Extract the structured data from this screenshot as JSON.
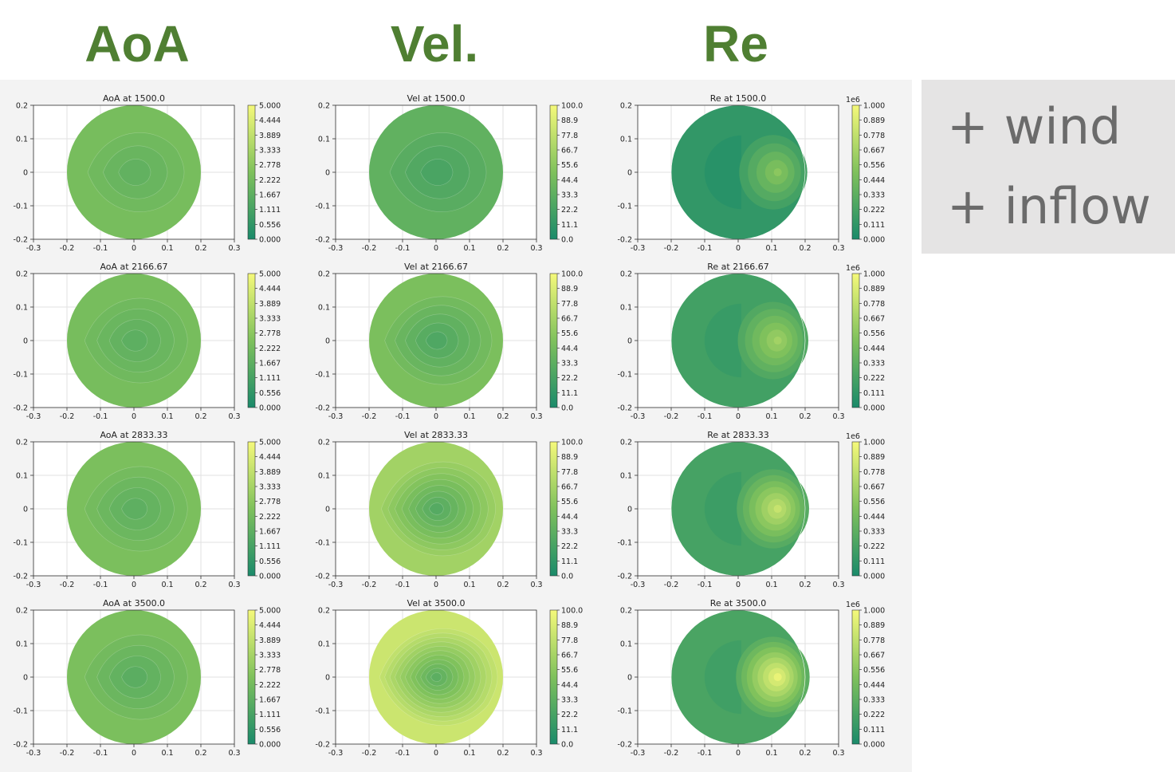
{
  "headers": {
    "aoa": "AoA",
    "vel": "Vel.",
    "re": "Re"
  },
  "annotations": [
    "+ wind",
    "+ inflow"
  ],
  "colors": {
    "header_green": "#4f7f32",
    "panel_bg": "#f3f3f3",
    "side_bg": "#e5e4e4",
    "colormap": [
      "#1a8a6a",
      "#7fc15c",
      "#f5f97a"
    ]
  },
  "chart_data": [
    {
      "type": "heatmap",
      "quantity": "AoA",
      "xlim": [
        -0.3,
        0.3
      ],
      "ylim": [
        -0.2,
        0.2
      ],
      "x_ticks": [
        "-0.3",
        "-0.2",
        "-0.1",
        "0",
        "0.1",
        "0.2",
        "0.3"
      ],
      "y_ticks": [
        "-0.2",
        "-0.1",
        "0",
        "0.1",
        "0.2"
      ],
      "grid": true,
      "colorbar": {
        "range": [
          0,
          5
        ],
        "scale_label": "",
        "ticks": [
          "5.000",
          "4.444",
          "3.889",
          "3.333",
          "2.778",
          "2.222",
          "1.667",
          "1.111",
          "0.556",
          "0.000"
        ]
      },
      "panels": [
        {
          "title": "AoA at 1500.0",
          "level_center": 1.6,
          "level_edge": 2.3,
          "contours": 4
        },
        {
          "title": "AoA at 2166.67",
          "level_center": 1.5,
          "level_edge": 2.3,
          "contours": 5
        },
        {
          "title": "AoA at 2833.33",
          "level_center": 1.5,
          "level_edge": 2.4,
          "contours": 5
        },
        {
          "title": "AoA at 3500.0",
          "level_center": 1.4,
          "level_edge": 2.4,
          "contours": 5
        }
      ]
    },
    {
      "type": "heatmap",
      "quantity": "Vel",
      "xlim": [
        -0.3,
        0.3
      ],
      "ylim": [
        -0.2,
        0.2
      ],
      "x_ticks": [
        "-0.3",
        "-0.2",
        "-0.1",
        "0",
        "0.1",
        "0.2",
        "0.3"
      ],
      "y_ticks": [
        "-0.2",
        "-0.1",
        "0",
        "0.1",
        "0.2"
      ],
      "grid": true,
      "colorbar": {
        "range": [
          0,
          100
        ],
        "scale_label": "",
        "ticks": [
          "100.0",
          "88.9",
          "77.8",
          "66.7",
          "55.6",
          "44.4",
          "33.3",
          "22.2",
          "11.1",
          "0.0"
        ]
      },
      "panels": [
        {
          "title": "Vel at 1500.0",
          "level_center": 20,
          "level_edge": 35,
          "contours": 4
        },
        {
          "title": "Vel at 2166.67",
          "level_center": 22,
          "level_edge": 48,
          "contours": 6
        },
        {
          "title": "Vel at 2833.33",
          "level_center": 25,
          "level_edge": 65,
          "contours": 9
        },
        {
          "title": "Vel at 3500.0",
          "level_center": 28,
          "level_edge": 82,
          "contours": 12
        }
      ]
    },
    {
      "type": "heatmap",
      "quantity": "Re",
      "xlim": [
        -0.3,
        0.3
      ],
      "ylim": [
        -0.2,
        0.2
      ],
      "x_ticks": [
        "-0.3",
        "-0.2",
        "-0.1",
        "0",
        "0.1",
        "0.2",
        "0.3"
      ],
      "y_ticks": [
        "-0.2",
        "-0.1",
        "0",
        "0.1",
        "0.2"
      ],
      "grid": true,
      "colorbar": {
        "range": [
          0,
          1000000
        ],
        "scale_label": "1e6",
        "ticks": [
          "1.000",
          "0.889",
          "0.778",
          "0.667",
          "0.556",
          "0.444",
          "0.333",
          "0.222",
          "0.111",
          "0.000"
        ]
      },
      "panels": [
        {
          "title": "Re at 1500.0",
          "level_base": 0.12,
          "level_peak": 0.55,
          "contours": 5
        },
        {
          "title": "Re at 2166.67",
          "level_base": 0.2,
          "level_peak": 0.65,
          "contours": 6
        },
        {
          "title": "Re at 2833.33",
          "level_base": 0.22,
          "level_peak": 0.8,
          "contours": 7
        },
        {
          "title": "Re at 3500.0",
          "level_base": 0.24,
          "level_peak": 0.95,
          "contours": 8
        }
      ]
    }
  ]
}
